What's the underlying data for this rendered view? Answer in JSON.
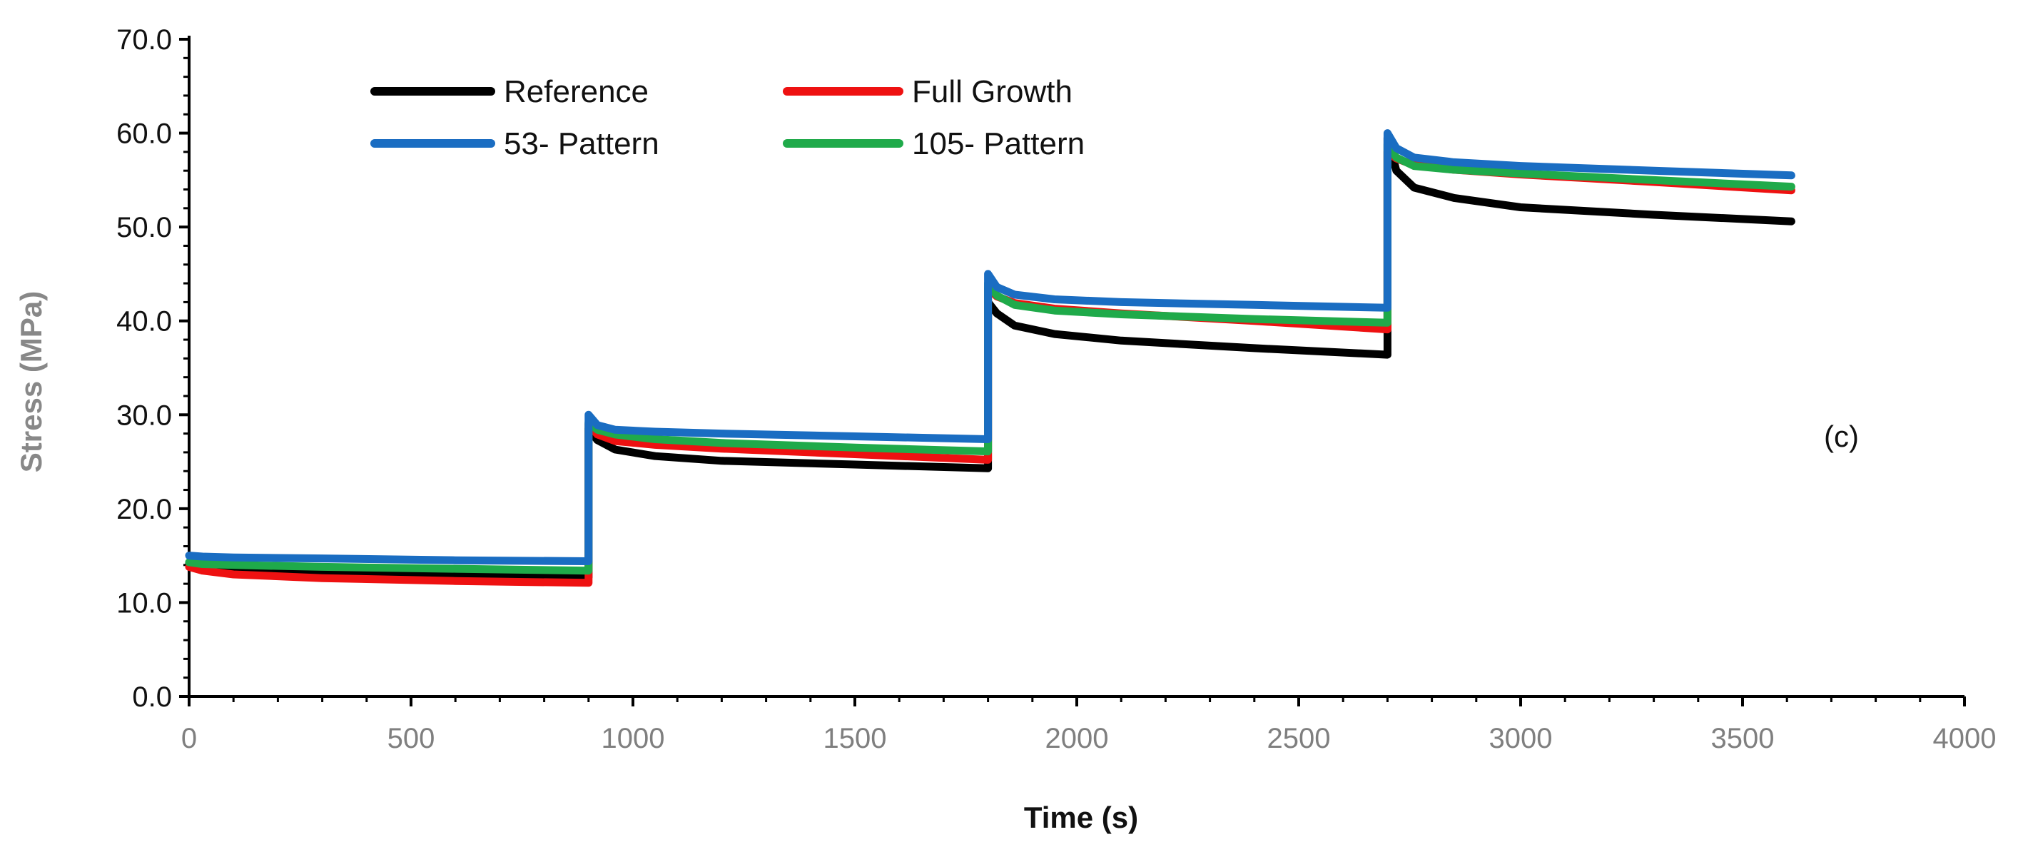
{
  "chart_data": {
    "type": "line",
    "title": "",
    "xlabel": "Time (s)",
    "ylabel": "Stress (MPa)",
    "xlim": [
      0,
      4000
    ],
    "ylim": [
      0,
      70
    ],
    "x_ticks": [
      "0",
      "500",
      "1000",
      "1500",
      "2000",
      "2500",
      "3000",
      "3500",
      "4000"
    ],
    "y_ticks": [
      "0.0",
      "10.0",
      "20.0",
      "30.0",
      "40.0",
      "50.0",
      "60.0",
      "70.0"
    ],
    "annotation": "(c)",
    "legend_position": "top-left",
    "series": [
      {
        "name": "Reference",
        "color": "#000000",
        "points": [
          [
            0,
            14.2
          ],
          [
            30,
            13.7
          ],
          [
            100,
            13.4
          ],
          [
            300,
            13.1
          ],
          [
            600,
            12.9
          ],
          [
            900,
            12.7
          ],
          [
            900,
            28.5
          ],
          [
            920,
            27.3
          ],
          [
            960,
            26.3
          ],
          [
            1050,
            25.6
          ],
          [
            1200,
            25.1
          ],
          [
            1500,
            24.7
          ],
          [
            1800,
            24.3
          ],
          [
            1800,
            42.0
          ],
          [
            1820,
            40.8
          ],
          [
            1860,
            39.5
          ],
          [
            1950,
            38.6
          ],
          [
            2100,
            37.9
          ],
          [
            2400,
            37.1
          ],
          [
            2700,
            36.4
          ],
          [
            2700,
            59.5
          ],
          [
            2720,
            56.0
          ],
          [
            2760,
            54.2
          ],
          [
            2850,
            53.1
          ],
          [
            3000,
            52.1
          ],
          [
            3300,
            51.3
          ],
          [
            3610,
            50.6
          ]
        ]
      },
      {
        "name": "Full Growth",
        "color": "#ee1111",
        "points": [
          [
            0,
            13.8
          ],
          [
            30,
            13.4
          ],
          [
            100,
            13.0
          ],
          [
            300,
            12.6
          ],
          [
            600,
            12.3
          ],
          [
            900,
            12.1
          ],
          [
            900,
            29.0
          ],
          [
            920,
            27.9
          ],
          [
            960,
            27.2
          ],
          [
            1050,
            26.8
          ],
          [
            1200,
            26.4
          ],
          [
            1500,
            25.8
          ],
          [
            1800,
            25.2
          ],
          [
            1800,
            43.5
          ],
          [
            1820,
            42.6
          ],
          [
            1860,
            41.9
          ],
          [
            1950,
            41.3
          ],
          [
            2100,
            40.8
          ],
          [
            2400,
            40.0
          ],
          [
            2700,
            39.1
          ],
          [
            2700,
            58.0
          ],
          [
            2720,
            57.3
          ],
          [
            2760,
            56.6
          ],
          [
            2850,
            56.1
          ],
          [
            3000,
            55.6
          ],
          [
            3300,
            54.8
          ],
          [
            3610,
            53.9
          ]
        ]
      },
      {
        "name": "53- Pattern",
        "color": "#1a6dc2",
        "points": [
          [
            0,
            15.0
          ],
          [
            30,
            14.9
          ],
          [
            100,
            14.8
          ],
          [
            300,
            14.7
          ],
          [
            600,
            14.5
          ],
          [
            900,
            14.4
          ],
          [
            900,
            30.0
          ],
          [
            920,
            28.9
          ],
          [
            960,
            28.4
          ],
          [
            1050,
            28.2
          ],
          [
            1200,
            28.0
          ],
          [
            1500,
            27.7
          ],
          [
            1800,
            27.4
          ],
          [
            1800,
            45.0
          ],
          [
            1820,
            43.6
          ],
          [
            1860,
            42.8
          ],
          [
            1950,
            42.3
          ],
          [
            2100,
            42.0
          ],
          [
            2400,
            41.7
          ],
          [
            2700,
            41.4
          ],
          [
            2700,
            60.0
          ],
          [
            2720,
            58.4
          ],
          [
            2760,
            57.4
          ],
          [
            2850,
            56.9
          ],
          [
            3000,
            56.5
          ],
          [
            3300,
            56.0
          ],
          [
            3610,
            55.5
          ]
        ]
      },
      {
        "name": "105- Pattern",
        "color": "#1faa4a",
        "points": [
          [
            0,
            14.3
          ],
          [
            30,
            14.1
          ],
          [
            100,
            14.0
          ],
          [
            300,
            13.8
          ],
          [
            600,
            13.6
          ],
          [
            900,
            13.4
          ],
          [
            900,
            29.2
          ],
          [
            920,
            28.4
          ],
          [
            960,
            27.9
          ],
          [
            1050,
            27.4
          ],
          [
            1200,
            27.0
          ],
          [
            1500,
            26.5
          ],
          [
            1800,
            26.1
          ],
          [
            1800,
            44.0
          ],
          [
            1820,
            42.7
          ],
          [
            1860,
            41.7
          ],
          [
            1950,
            41.1
          ],
          [
            2100,
            40.7
          ],
          [
            2400,
            40.2
          ],
          [
            2700,
            39.8
          ],
          [
            2700,
            58.8
          ],
          [
            2720,
            57.4
          ],
          [
            2760,
            56.5
          ],
          [
            2850,
            56.1
          ],
          [
            3000,
            55.7
          ],
          [
            3300,
            55.0
          ],
          [
            3610,
            54.3
          ]
        ]
      }
    ]
  }
}
